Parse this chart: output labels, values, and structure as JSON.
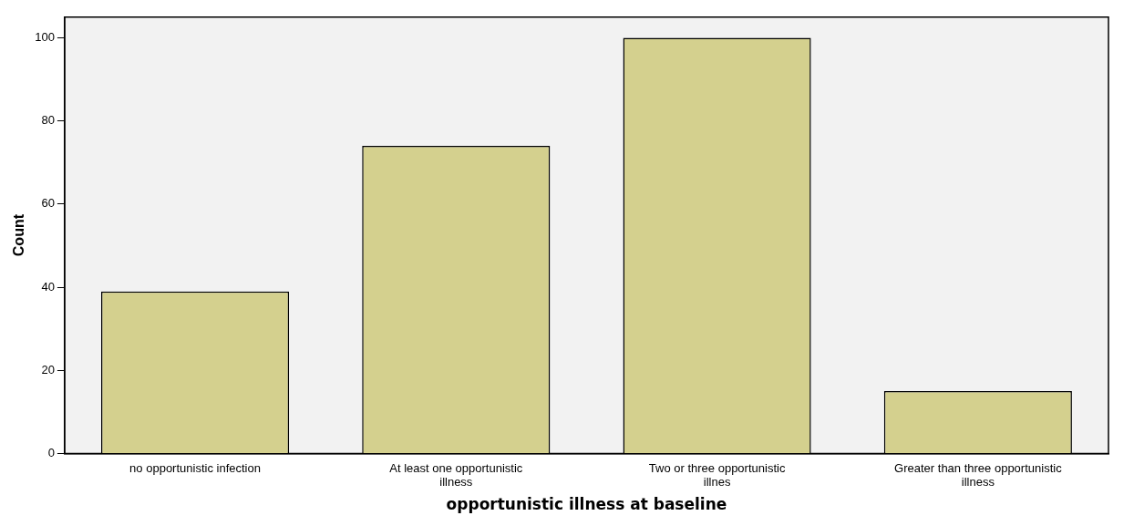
{
  "chart_data": {
    "type": "bar",
    "xlabel": "opportunistic illness at baseline",
    "ylabel": "Count",
    "categories": [
      "no opportunistic infection",
      "At least one opportunistic illness",
      "Two or three opportunistic illnes",
      "Greater than three opportunistic illness"
    ],
    "values": [
      39,
      74,
      100,
      15
    ],
    "color": "#d4d08e",
    "ylim": [
      0,
      105
    ],
    "yticks": [
      0,
      20,
      40,
      60,
      80,
      100
    ],
    "grid": false
  }
}
